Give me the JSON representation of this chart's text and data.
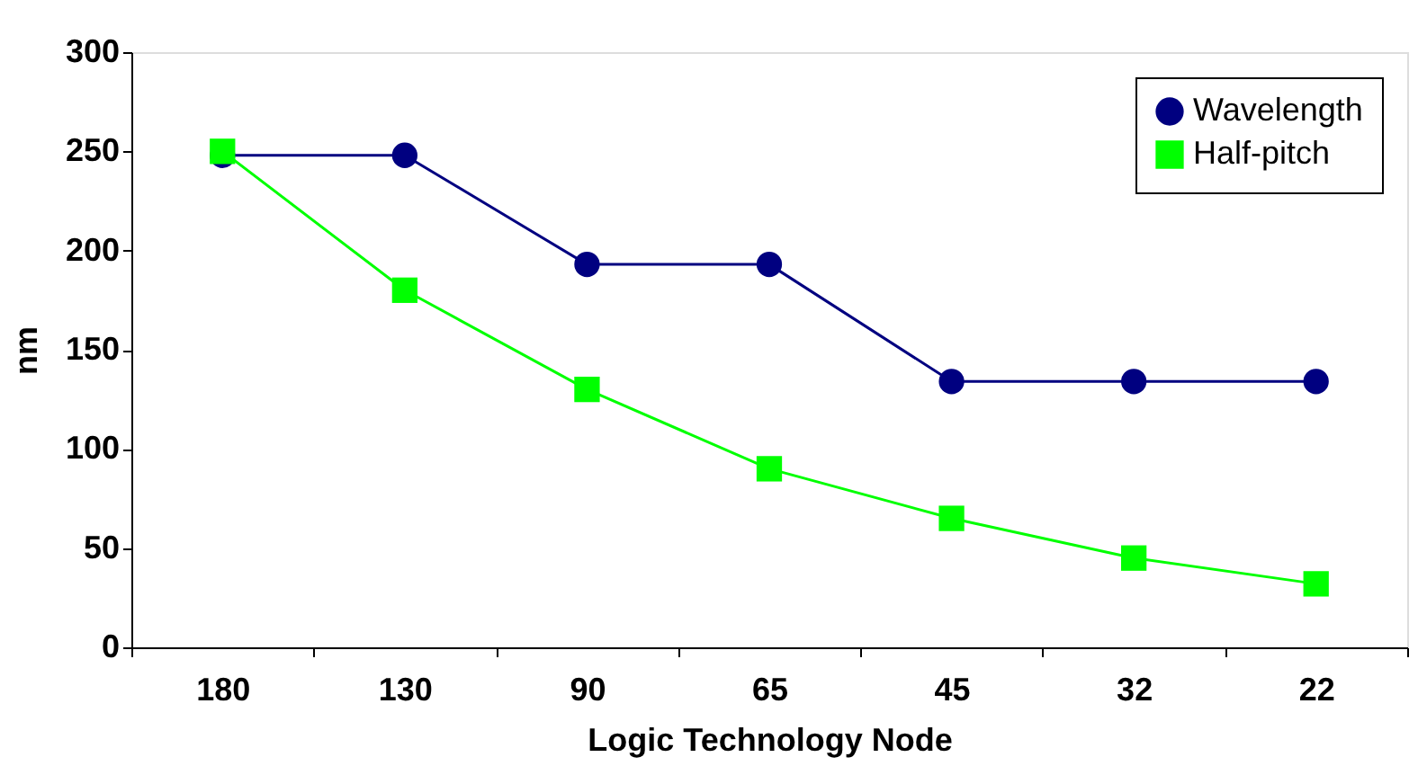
{
  "chart_data": {
    "type": "line",
    "xlabel": "Logic Technology Node",
    "ylabel": "nm",
    "categories": [
      "180",
      "130",
      "90",
      "65",
      "45",
      "32",
      "22"
    ],
    "series": [
      {
        "name": "Wavelength",
        "color": "#000080",
        "marker": "circle",
        "values": [
          248,
          248,
          193,
          193,
          134,
          134,
          134
        ]
      },
      {
        "name": "Half-pitch",
        "color": "#00ff00",
        "marker": "square",
        "values": [
          250,
          180,
          130,
          90,
          65,
          45,
          32
        ]
      }
    ],
    "ylim": [
      0,
      300
    ],
    "yticks": [
      0,
      50,
      100,
      150,
      200,
      250,
      300
    ],
    "grid": false,
    "legend": "top right"
  }
}
